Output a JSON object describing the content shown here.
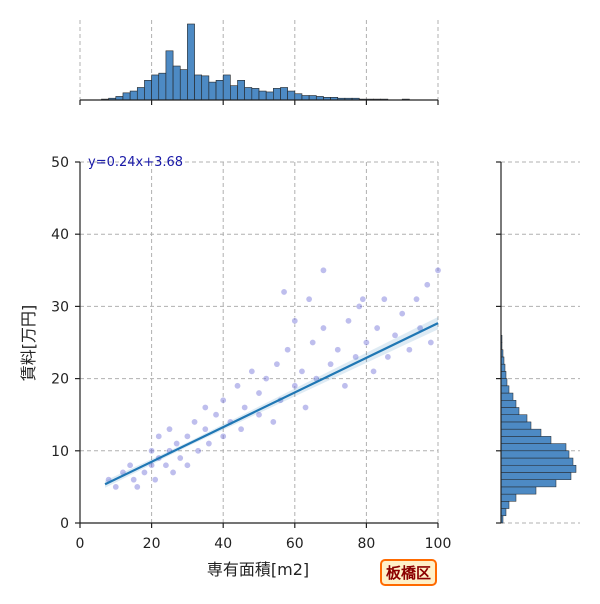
{
  "chart_data": {
    "type": "scatter",
    "xlabel": "専有面積[m2]",
    "ylabel": "賃料[万円]",
    "xlim": [
      0,
      100
    ],
    "ylim": [
      0,
      50
    ],
    "xticks": [
      "0",
      "20",
      "40",
      "60",
      "80",
      "100"
    ],
    "yticks": [
      "0",
      "10",
      "20",
      "30",
      "40",
      "50"
    ],
    "grid": true,
    "regression": {
      "slope": 0.24,
      "intercept": 3.68,
      "x_range": [
        7,
        100
      ],
      "label": "y=0.24x+3.68"
    },
    "scatter_approx_points": [
      [
        8,
        6
      ],
      [
        10,
        5
      ],
      [
        12,
        7
      ],
      [
        14,
        8
      ],
      [
        15,
        6
      ],
      [
        16,
        5
      ],
      [
        18,
        7
      ],
      [
        20,
        8
      ],
      [
        20,
        10
      ],
      [
        21,
        6
      ],
      [
        22,
        9
      ],
      [
        22,
        12
      ],
      [
        24,
        8
      ],
      [
        25,
        10
      ],
      [
        25,
        13
      ],
      [
        26,
        7
      ],
      [
        27,
        11
      ],
      [
        28,
        9
      ],
      [
        30,
        12
      ],
      [
        30,
        8
      ],
      [
        32,
        14
      ],
      [
        33,
        10
      ],
      [
        35,
        13
      ],
      [
        35,
        16
      ],
      [
        36,
        11
      ],
      [
        38,
        15
      ],
      [
        40,
        12
      ],
      [
        40,
        17
      ],
      [
        42,
        14
      ],
      [
        44,
        19
      ],
      [
        45,
        13
      ],
      [
        46,
        16
      ],
      [
        48,
        21
      ],
      [
        50,
        15
      ],
      [
        50,
        18
      ],
      [
        52,
        20
      ],
      [
        54,
        14
      ],
      [
        55,
        22
      ],
      [
        56,
        17
      ],
      [
        58,
        24
      ],
      [
        60,
        19
      ],
      [
        62,
        21
      ],
      [
        63,
        16
      ],
      [
        65,
        25
      ],
      [
        66,
        20
      ],
      [
        68,
        27
      ],
      [
        70,
        22
      ],
      [
        72,
        24
      ],
      [
        74,
        19
      ],
      [
        75,
        28
      ],
      [
        77,
        23
      ],
      [
        78,
        30
      ],
      [
        80,
        25
      ],
      [
        82,
        21
      ],
      [
        83,
        27
      ],
      [
        85,
        31
      ],
      [
        86,
        23
      ],
      [
        88,
        26
      ],
      [
        90,
        29
      ],
      [
        92,
        24
      ],
      [
        94,
        31
      ],
      [
        95,
        27
      ],
      [
        97,
        33
      ],
      [
        98,
        25
      ],
      [
        100,
        35
      ],
      [
        68,
        35
      ],
      [
        60,
        28
      ],
      [
        57,
        32
      ],
      [
        64,
        31
      ],
      [
        79,
        31
      ]
    ],
    "hist_x_approx": {
      "bin_edges": [
        0,
        100
      ],
      "counts": [
        0,
        0,
        0,
        1,
        2,
        4,
        8,
        10,
        14,
        22,
        28,
        30,
        55,
        38,
        34,
        85,
        28,
        27,
        20,
        22,
        28,
        16,
        22,
        14,
        13,
        10,
        9,
        13,
        14,
        10,
        7,
        5,
        5,
        4,
        3,
        3,
        2,
        2,
        2,
        1,
        1,
        1,
        1,
        0,
        0,
        1,
        0,
        0,
        0,
        0
      ]
    },
    "hist_y_approx": {
      "bin_edges": [
        0,
        50
      ],
      "counts": [
        2,
        5,
        8,
        15,
        35,
        55,
        70,
        75,
        72,
        68,
        65,
        50,
        40,
        30,
        26,
        18,
        15,
        12,
        8,
        6,
        5,
        4,
        3,
        2,
        1,
        1
      ]
    }
  },
  "ward_label": "板橋区",
  "colors": {
    "scatter_fill": "#6f6fd6",
    "regression": "#1f77b4",
    "hist": "#4d8ac4",
    "grid": "#b0b0b0"
  }
}
